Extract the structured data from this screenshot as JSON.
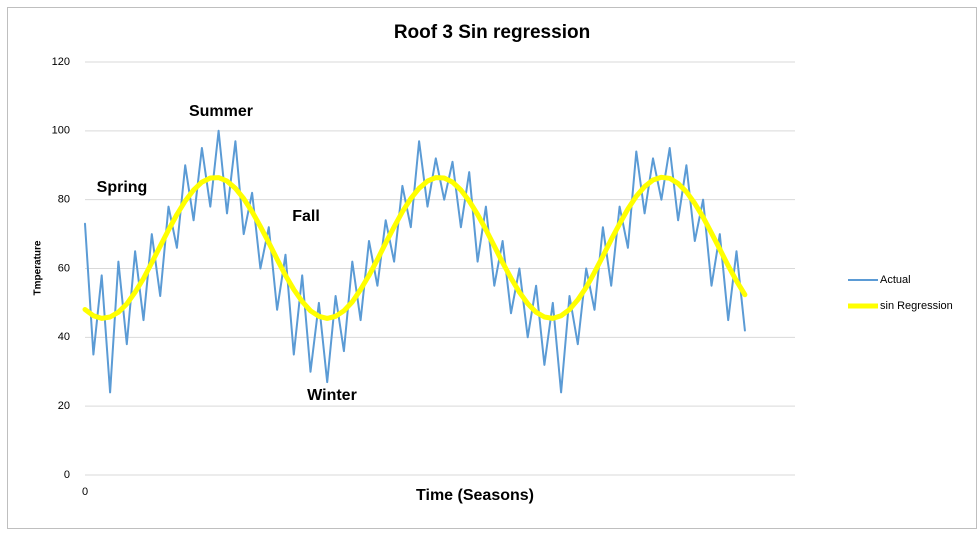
{
  "chart_data": {
    "type": "line",
    "title": "Roof 3 Sin regression",
    "x_label": "Time (Seasons)",
    "y_label": "Tmperature",
    "annotations": [
      "Summer",
      "Spring",
      "Fall",
      "Winter"
    ],
    "x": [
      0,
      1,
      2,
      3,
      4,
      5,
      6,
      7,
      8,
      9,
      10,
      11,
      12,
      13,
      14,
      15,
      16,
      17,
      18,
      19,
      20,
      21,
      22,
      23,
      24,
      25,
      26,
      27,
      28,
      29,
      30,
      31,
      32,
      33,
      34,
      35,
      36,
      37,
      38,
      39,
      40,
      41,
      42,
      43,
      44,
      45,
      46,
      47,
      48,
      49,
      50,
      51,
      52,
      53,
      54,
      55,
      56,
      57,
      58,
      59,
      60,
      61,
      62,
      63,
      64,
      65,
      66,
      67,
      68,
      69,
      70,
      71,
      72,
      73,
      74,
      75,
      76,
      77,
      78,
      79
    ],
    "xlim": [
      0,
      85
    ],
    "xticks": [
      0
    ],
    "ylim": [
      0,
      120
    ],
    "yticks": [
      0,
      20,
      40,
      60,
      80,
      100,
      120
    ],
    "grid": true,
    "legend": "right",
    "series": [
      {
        "name": "Actual",
        "color": "#5b9bd5",
        "values": [
          73,
          35,
          58,
          24,
          62,
          38,
          65,
          45,
          70,
          52,
          78,
          66,
          90,
          74,
          95,
          78,
          100,
          76,
          97,
          70,
          82,
          60,
          72,
          48,
          64,
          35,
          58,
          30,
          50,
          27,
          52,
          36,
          62,
          45,
          68,
          55,
          74,
          62,
          84,
          72,
          97,
          78,
          92,
          80,
          91,
          72,
          88,
          62,
          78,
          55,
          68,
          47,
          60,
          40,
          55,
          32,
          50,
          24,
          52,
          38,
          60,
          48,
          72,
          55,
          78,
          66,
          94,
          76,
          92,
          80,
          95,
          74,
          90,
          68,
          80,
          55,
          70,
          45,
          65,
          42
        ]
      },
      {
        "name": "sin Regression",
        "color": "#ffff00",
        "values": [
          48.1,
          46.3,
          45.5,
          45.9,
          47.3,
          49.7,
          53.1,
          57.1,
          61.7,
          66.5,
          71.2,
          75.7,
          79.6,
          82.8,
          85.1,
          86.3,
          86.4,
          85.4,
          83.3,
          80.3,
          76.5,
          72.2,
          67.5,
          62.7,
          58.0,
          53.9,
          50.4,
          47.7,
          46.1,
          45.5,
          46.1,
          47.7,
          50.3,
          53.9,
          58.0,
          62.6,
          67.4,
          72.1,
          76.5,
          80.3,
          83.3,
          85.4,
          86.4,
          86.3,
          85.1,
          82.8,
          79.6,
          75.7,
          71.3,
          66.5,
          61.7,
          57.2,
          53.1,
          49.8,
          47.3,
          45.9,
          45.5,
          46.3,
          48.1,
          50.9,
          54.5,
          58.9,
          63.6,
          68.4,
          73.0,
          77.3,
          81.0,
          83.8,
          85.7,
          86.5,
          86.2,
          84.7,
          82.3,
          78.9,
          74.9,
          70.3,
          65.6,
          60.8,
          56.4,
          52.4
        ]
      }
    ]
  }
}
